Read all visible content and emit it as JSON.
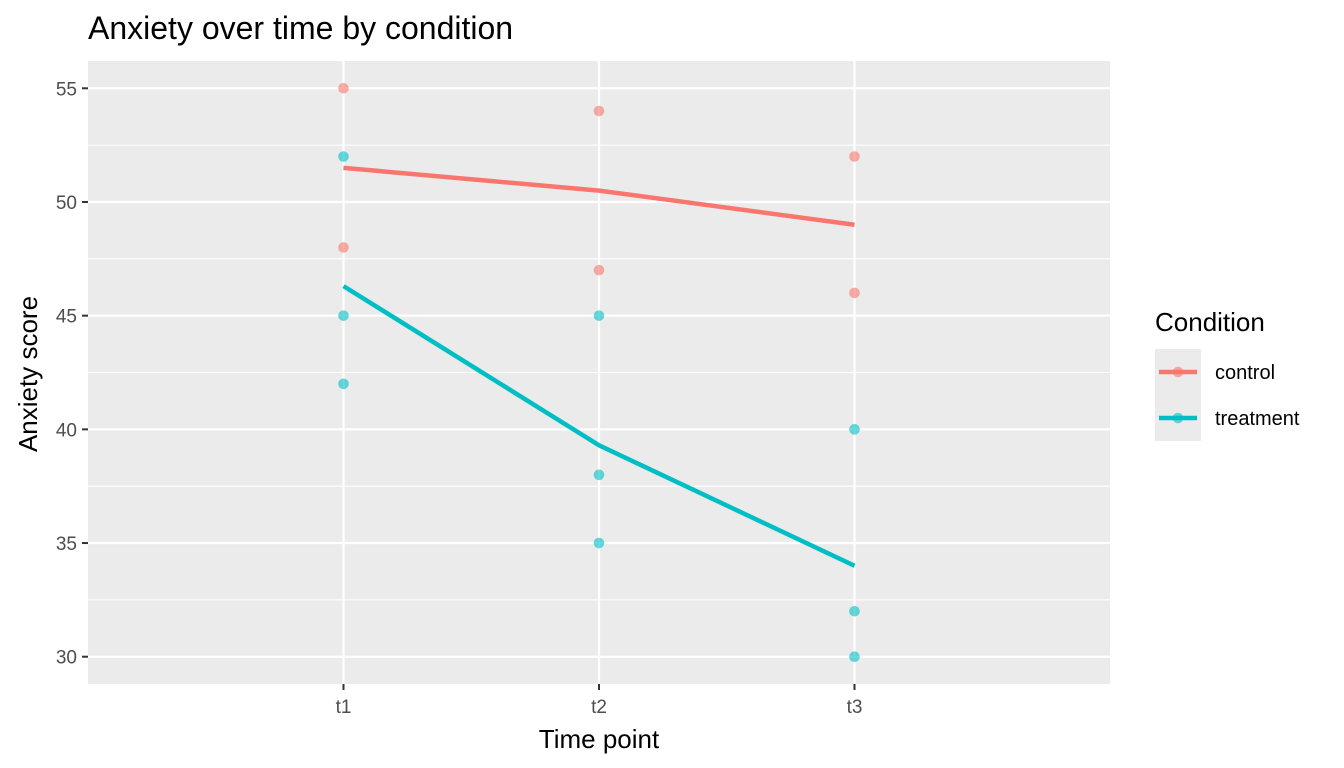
{
  "chart_data": {
    "type": "line",
    "title": "Anxiety over time by condition",
    "xlabel": "Time point",
    "ylabel": "Anxiety score",
    "categories": [
      "t1",
      "t2",
      "t3"
    ],
    "ylim": [
      28.8,
      56.2
    ],
    "yticks": [
      30,
      35,
      40,
      45,
      50,
      55
    ],
    "grid": true,
    "legend": {
      "title": "Condition",
      "placement": "right"
    },
    "series": [
      {
        "name": "control",
        "color": "#F8766D",
        "mean_values": [
          51.5,
          50.5,
          49
        ],
        "points": [
          {
            "x": "t1",
            "y": 55
          },
          {
            "x": "t1",
            "y": 48
          },
          {
            "x": "t2",
            "y": 54
          },
          {
            "x": "t2",
            "y": 47
          },
          {
            "x": "t3",
            "y": 52
          },
          {
            "x": "t3",
            "y": 46
          }
        ]
      },
      {
        "name": "treatment",
        "color": "#00BFC4",
        "mean_values": [
          46.3,
          39.3,
          34
        ],
        "points": [
          {
            "x": "t1",
            "y": 52
          },
          {
            "x": "t1",
            "y": 45
          },
          {
            "x": "t1",
            "y": 42
          },
          {
            "x": "t2",
            "y": 45
          },
          {
            "x": "t2",
            "y": 38
          },
          {
            "x": "t2",
            "y": 35
          },
          {
            "x": "t3",
            "y": 40
          },
          {
            "x": "t3",
            "y": 32
          },
          {
            "x": "t3",
            "y": 30
          }
        ]
      }
    ]
  }
}
